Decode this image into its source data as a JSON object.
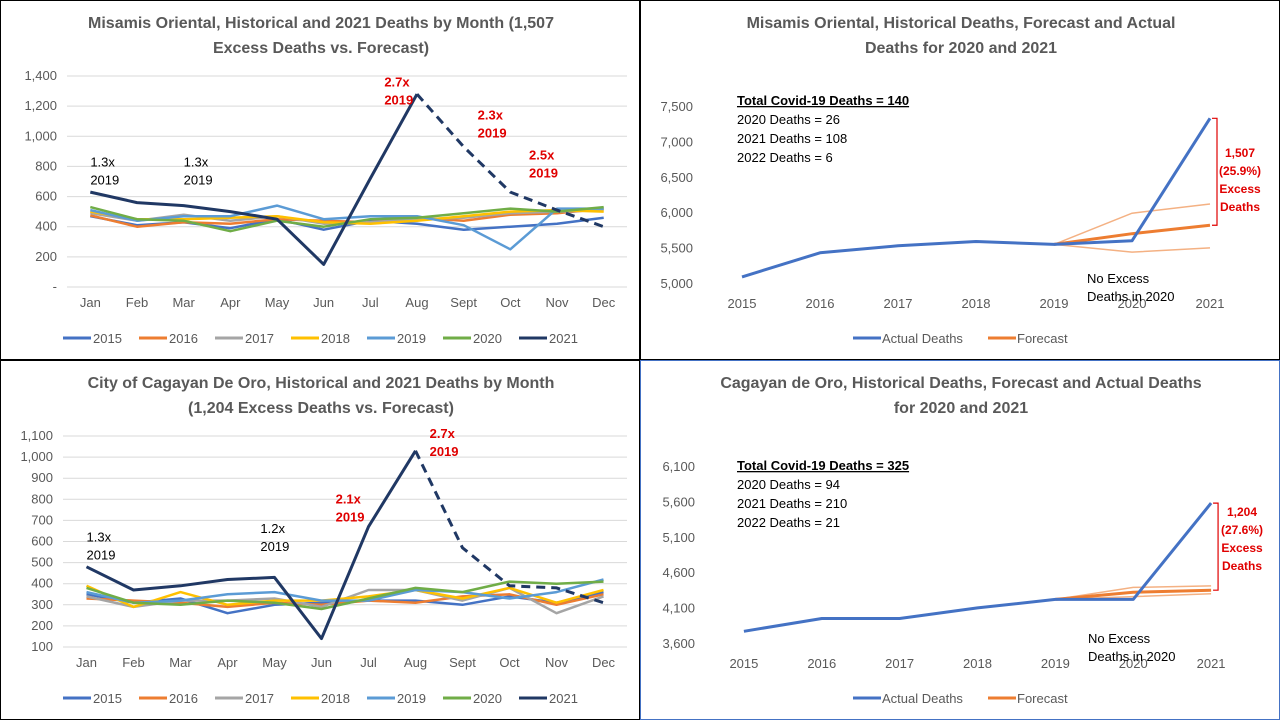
{
  "chart_data": [
    {
      "type": "line",
      "title_lines": [
        "Misamis Oriental, Historical and  2021 Deaths by Month (1,507",
        "Excess Deaths vs. Forecast)"
      ],
      "categories": [
        "Jan",
        "Feb",
        "Mar",
        "Apr",
        "May",
        "Jun",
        "Jul",
        "Aug",
        "Sept",
        "Oct",
        "Nov",
        "Dec"
      ],
      "ylim": [
        0,
        1400
      ],
      "yticks": [
        {
          "v": 0,
          "label": "-"
        },
        {
          "v": 200,
          "label": "200"
        },
        {
          "v": 400,
          "label": "400"
        },
        {
          "v": 600,
          "label": "600"
        },
        {
          "v": 800,
          "label": "800"
        },
        {
          "v": 1000,
          "label": "1,000"
        },
        {
          "v": 1200,
          "label": "1,200"
        },
        {
          "v": 1400,
          "label": "1,400"
        }
      ],
      "series": [
        {
          "name": "2015",
          "color": "#4472c4",
          "values": [
            470,
            410,
            430,
            390,
            450,
            380,
            440,
            420,
            380,
            400,
            420,
            460
          ]
        },
        {
          "name": "2016",
          "color": "#ed7d31",
          "values": [
            475,
            400,
            430,
            420,
            450,
            440,
            430,
            460,
            440,
            480,
            490,
            520
          ]
        },
        {
          "name": "2017",
          "color": "#a5a5a5",
          "values": [
            490,
            440,
            480,
            440,
            470,
            420,
            430,
            450,
            460,
            490,
            500,
            510
          ]
        },
        {
          "name": "2018",
          "color": "#ffc000",
          "values": [
            500,
            450,
            450,
            460,
            470,
            430,
            420,
            440,
            470,
            500,
            510,
            500
          ]
        },
        {
          "name": "2019",
          "color": "#5b9bd5",
          "values": [
            510,
            440,
            470,
            470,
            540,
            450,
            470,
            470,
            410,
            250,
            520,
            520
          ]
        },
        {
          "name": "2020",
          "color": "#70ad47",
          "values": [
            530,
            450,
            440,
            370,
            440,
            400,
            450,
            460,
            490,
            520,
            500,
            530
          ]
        },
        {
          "name": "2021",
          "color": "#203864",
          "values": [
            630,
            560,
            540,
            500,
            450,
            150,
            720,
            1280,
            930,
            630,
            510,
            400
          ],
          "dashed_from": 7
        }
      ],
      "annotations": [
        {
          "lines": [
            "1.3x",
            "2019"
          ],
          "color": "black",
          "at": [
            0,
            800
          ]
        },
        {
          "lines": [
            "1.3x",
            "2019"
          ],
          "color": "black",
          "at": [
            2,
            800
          ]
        },
        {
          "lines": [
            "2.7x",
            "2019"
          ],
          "color": "red",
          "at": [
            6.3,
            1330
          ]
        },
        {
          "lines": [
            "2.3x",
            "2019"
          ],
          "color": "red",
          "at": [
            8.3,
            1110
          ]
        },
        {
          "lines": [
            "2.5x",
            "2019"
          ],
          "color": "red",
          "at": [
            9.4,
            845
          ]
        }
      ]
    },
    {
      "type": "line",
      "title_lines": [
        "Misamis Oriental, Historical Deaths, Forecast and  Actual",
        "Deaths for 2020 and 2021"
      ],
      "categories": [
        "2015",
        "2016",
        "2017",
        "2018",
        "2019",
        "2020",
        "2021"
      ],
      "ylim": [
        5000,
        7500
      ],
      "yticks": [
        {
          "v": 5000,
          "label": "5,000"
        },
        {
          "v": 5500,
          "label": "5,500"
        },
        {
          "v": 6000,
          "label": "6,000"
        },
        {
          "v": 6500,
          "label": "6,500"
        },
        {
          "v": 7000,
          "label": "7,000"
        },
        {
          "v": 7500,
          "label": "7,500"
        }
      ],
      "actual": [
        5100,
        5440,
        5540,
        5600,
        5560,
        5610,
        7340
      ],
      "forecast": {
        "start": 4,
        "mid": [
          5560,
          5710,
          5830
        ],
        "upper": [
          5560,
          6000,
          6130
        ],
        "lower": [
          5560,
          5450,
          5510
        ]
      },
      "legend": [
        "Actual Deaths",
        "Forecast"
      ],
      "box": [
        "Total Covid-19 Deaths = 140",
        "2020 Deaths = 26",
        "2021 Deaths = 108",
        "2022 Deaths = 6"
      ],
      "excess_label": [
        "1,507",
        "(25.9%)",
        "Excess",
        "Deaths"
      ],
      "bracket": [
        5830,
        7340
      ],
      "no_excess": [
        "No Excess",
        "Deaths in 2020"
      ]
    },
    {
      "type": "line",
      "title_lines": [
        "City of Cagayan De Oro, Historical and  2021 Deaths by Month",
        "(1,204 Excess Deaths vs. Forecast)"
      ],
      "categories": [
        "Jan",
        "Feb",
        "Mar",
        "Apr",
        "May",
        "Jun",
        "Jul",
        "Aug",
        "Sept",
        "Oct",
        "Nov",
        "Dec"
      ],
      "ylim": [
        100,
        1100
      ],
      "yticks": [
        {
          "v": 100,
          "label": "100"
        },
        {
          "v": 200,
          "label": "200"
        },
        {
          "v": 300,
          "label": "300"
        },
        {
          "v": 400,
          "label": "400"
        },
        {
          "v": 500,
          "label": "500"
        },
        {
          "v": 600,
          "label": "600"
        },
        {
          "v": 700,
          "label": "700"
        },
        {
          "v": 800,
          "label": "800"
        },
        {
          "v": 900,
          "label": "900"
        },
        {
          "v": 1000,
          "label": "1,000"
        },
        {
          "v": 1100,
          "label": "1,100"
        }
      ],
      "series": [
        {
          "name": "2015",
          "color": "#4472c4",
          "values": [
            350,
            310,
            330,
            260,
            300,
            310,
            320,
            320,
            300,
            340,
            310,
            360
          ]
        },
        {
          "name": "2016",
          "color": "#ed7d31",
          "values": [
            330,
            320,
            310,
            290,
            310,
            300,
            320,
            310,
            340,
            350,
            300,
            350
          ]
        },
        {
          "name": "2017",
          "color": "#a5a5a5",
          "values": [
            340,
            290,
            320,
            320,
            330,
            290,
            370,
            370,
            320,
            380,
            260,
            340
          ]
        },
        {
          "name": "2018",
          "color": "#ffc000",
          "values": [
            390,
            290,
            360,
            300,
            320,
            320,
            340,
            370,
            330,
            380,
            310,
            370
          ]
        },
        {
          "name": "2019",
          "color": "#5b9bd5",
          "values": [
            360,
            310,
            320,
            350,
            360,
            320,
            320,
            370,
            360,
            330,
            360,
            420
          ]
        },
        {
          "name": "2020",
          "color": "#70ad47",
          "values": [
            380,
            310,
            300,
            320,
            310,
            280,
            330,
            380,
            360,
            410,
            400,
            410
          ]
        },
        {
          "name": "2021",
          "color": "#203864",
          "values": [
            480,
            370,
            390,
            420,
            430,
            140,
            670,
            1030,
            570,
            390,
            380,
            310
          ],
          "dashed_from": 7
        }
      ],
      "annotations": [
        {
          "lines": [
            "1.3x",
            "2019"
          ],
          "color": "black",
          "at": [
            0,
            600
          ]
        },
        {
          "lines": [
            "1.2x",
            "2019"
          ],
          "color": "black",
          "at": [
            3.7,
            640
          ]
        },
        {
          "lines": [
            "2.1x",
            "2019"
          ],
          "color": "red",
          "at": [
            5.3,
            780
          ]
        },
        {
          "lines": [
            "2.7x",
            "2019"
          ],
          "color": "red",
          "at": [
            7.3,
            1090
          ]
        }
      ]
    },
    {
      "type": "line",
      "title_lines": [
        "Cagayan de Oro, Historical Deaths, Forecast and Actual Deaths",
        "for 2020 and 2021"
      ],
      "categories": [
        "2015",
        "2016",
        "2017",
        "2018",
        "2019",
        "2020",
        "2021"
      ],
      "ylim": [
        3600,
        6100
      ],
      "yticks": [
        {
          "v": 3600,
          "label": "3,600"
        },
        {
          "v": 4100,
          "label": "4,100"
        },
        {
          "v": 4600,
          "label": "4,600"
        },
        {
          "v": 5100,
          "label": "5,100"
        },
        {
          "v": 5600,
          "label": "5,600"
        },
        {
          "v": 6100,
          "label": "6,100"
        }
      ],
      "actual": [
        3780,
        3960,
        3960,
        4110,
        4230,
        4230,
        5590
      ],
      "forecast": {
        "start": 4,
        "mid": [
          4230,
          4330,
          4360
        ],
        "upper": [
          4230,
          4400,
          4420
        ],
        "lower": [
          4230,
          4270,
          4310
        ]
      },
      "legend": [
        "Actual Deaths",
        "Forecast"
      ],
      "box": [
        "Total Covid-19 Deaths = 325",
        "2020 Deaths = 94",
        "2021 Deaths = 210",
        "2022 Deaths = 21"
      ],
      "excess_label": [
        "1,204",
        "(27.6%)",
        "Excess",
        "Deaths"
      ],
      "bracket": [
        4360,
        5590
      ],
      "no_excess": [
        "No Excess",
        "Deaths in 2020"
      ]
    }
  ]
}
